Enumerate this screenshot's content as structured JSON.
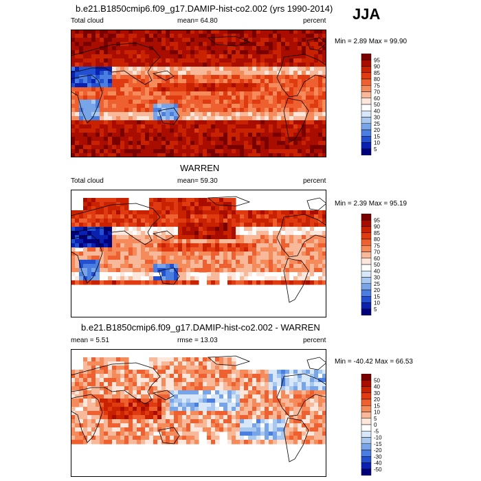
{
  "season": "JJA",
  "panels": [
    {
      "title": "b.e21.B1850cmip6.f09_g17.DAMIP-hist-co2.002 (yrs 1990-2014)",
      "left_label": "Total cloud",
      "center_label": "mean=  64.80",
      "right_label": "percent",
      "minmax": "Min =   2.89 Max =  99.90",
      "colorbar_levels": [
        "95",
        "90",
        "85",
        "80",
        "75",
        "70",
        "60",
        "50",
        "40",
        "30",
        "25",
        "20",
        "15",
        "10",
        "5"
      ]
    },
    {
      "title": "WARREN",
      "left_label": "Total cloud",
      "center_label": "mean=  59.30",
      "right_label": "percent",
      "minmax": "Min =   2.39 Max =  95.19",
      "colorbar_levels": [
        "95",
        "90",
        "85",
        "80",
        "75",
        "70",
        "60",
        "50",
        "40",
        "30",
        "25",
        "20",
        "15",
        "10",
        "5"
      ]
    },
    {
      "title": "b.e21.B1850cmip6.f09_g17.DAMIP-hist-co2.002 - WARREN",
      "left_label": "mean =   5.51",
      "center_label": "rmse =  13.03",
      "right_label": "percent",
      "minmax": "Min = -40.42 Max =  66.53",
      "colorbar_levels": [
        "50",
        "40",
        "30",
        "20",
        "15",
        "10",
        "5",
        "0",
        "-5",
        "-10",
        "-15",
        "-20",
        "-30",
        "-40",
        "-50"
      ]
    }
  ],
  "colors": {
    "scale": [
      "#7a0000",
      "#a80d00",
      "#c82200",
      "#e03a10",
      "#ef6030",
      "#f58a5a",
      "#f8b89a",
      "#fde6dc",
      "#ffffff",
      "#d8e8f8",
      "#a8c8f0",
      "#78a4e8",
      "#4a7ee0",
      "#2250d0",
      "#0a20b0",
      "#00007a"
    ]
  }
}
